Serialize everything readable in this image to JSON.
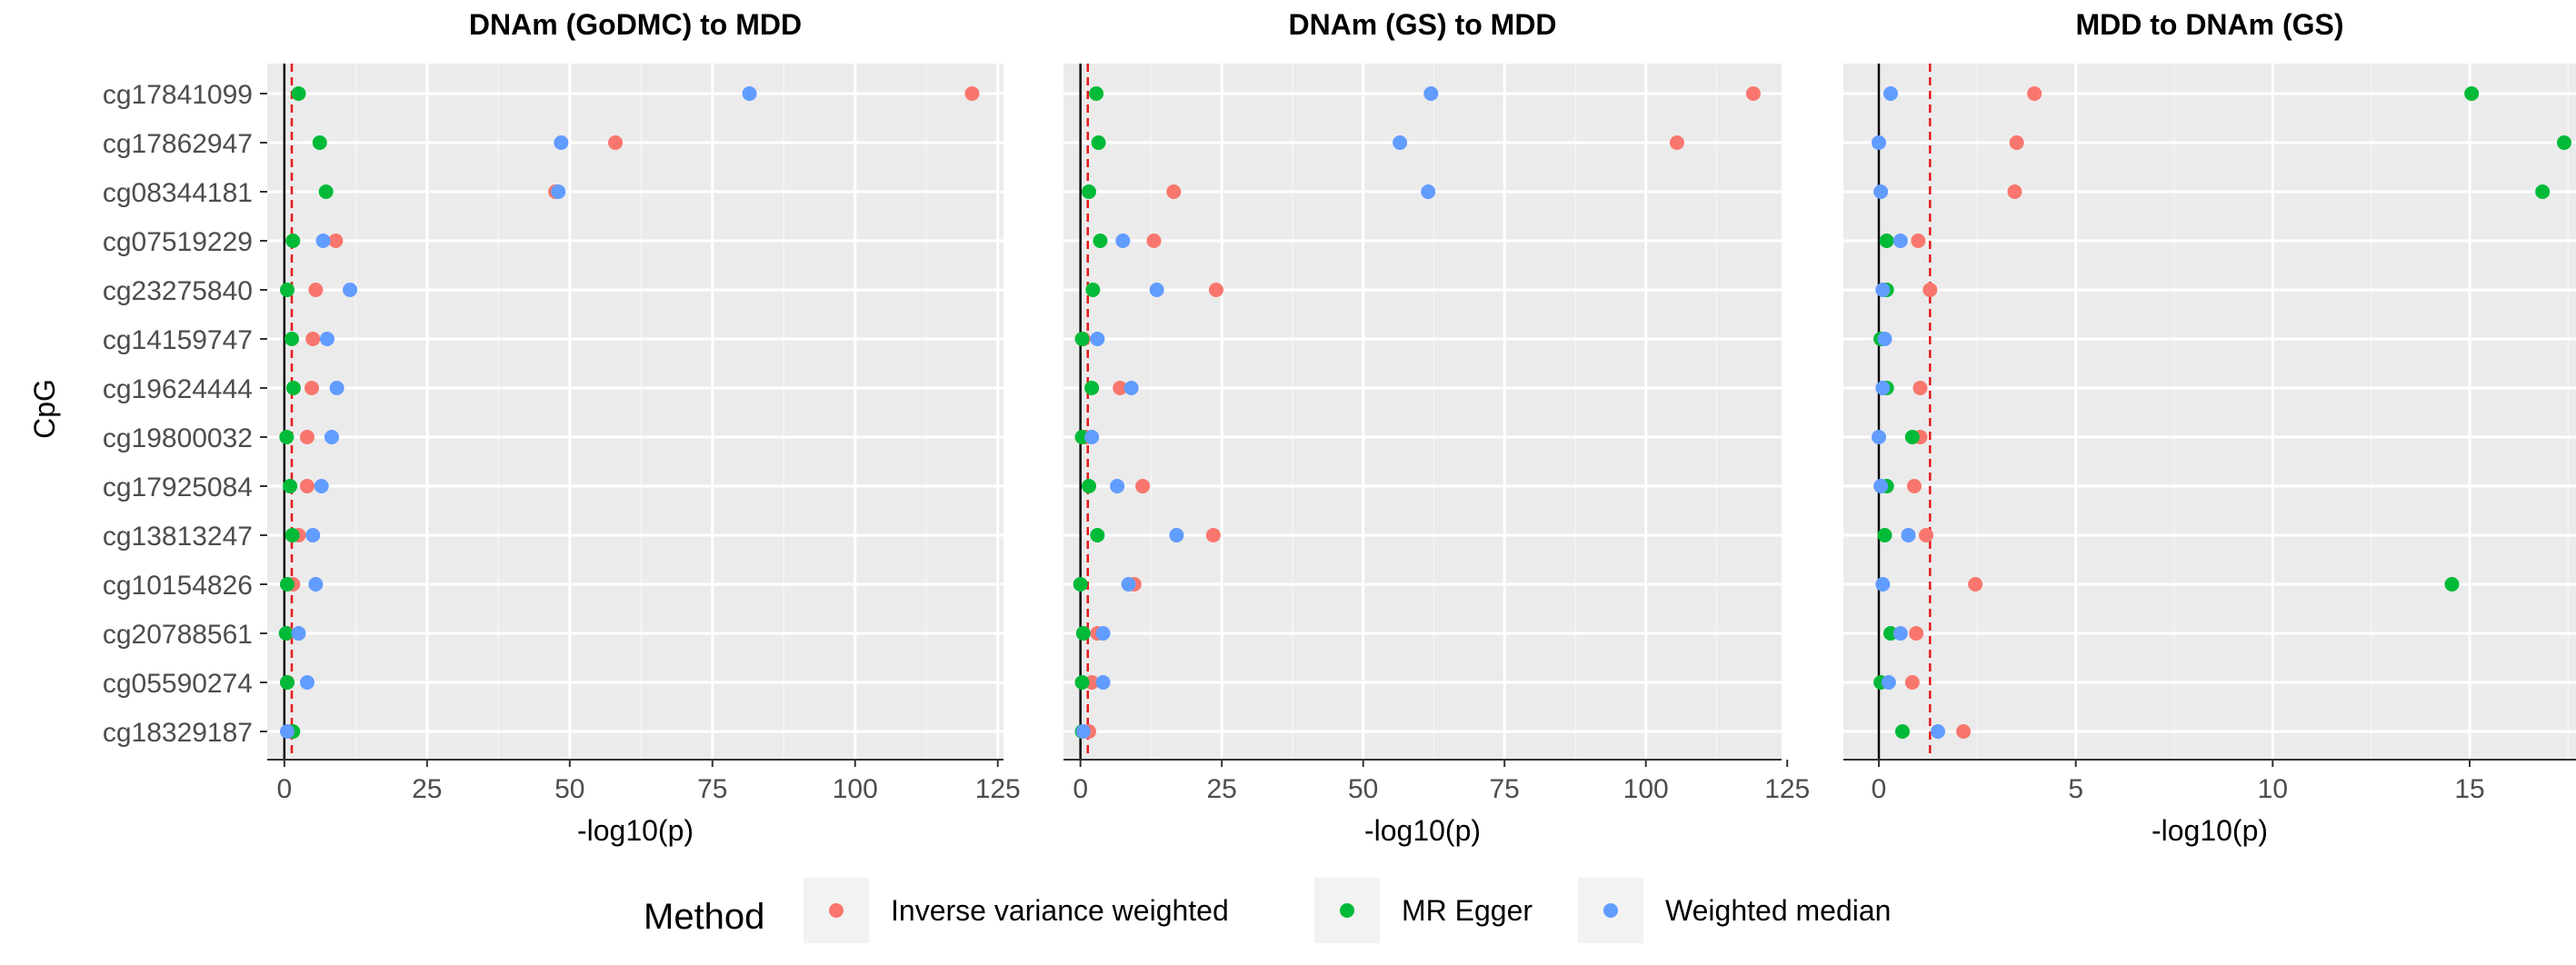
{
  "chart_data": {
    "type": "scatter",
    "ylabel": "CpG",
    "categories": [
      "cg17841099",
      "cg17862947",
      "cg08344181",
      "cg07519229",
      "cg23275840",
      "cg14159747",
      "cg19624444",
      "cg19800032",
      "cg17925084",
      "cg13813247",
      "cg10154826",
      "cg20788561",
      "cg05590274",
      "cg18329187"
    ],
    "legend": {
      "title": "Method",
      "position": "bottom",
      "entries": [
        {
          "name": "Inverse variance weighted",
          "color": "#F8766D"
        },
        {
          "name": "MR Egger",
          "color": "#00BA38"
        },
        {
          "name": "Weighted median",
          "color": "#619CFF"
        }
      ]
    },
    "panels": [
      {
        "title": "DNAm (GoDMC) to MDD",
        "xlabel": "-log10(p)",
        "xlim": [
          -3,
          126
        ],
        "xticks": [
          "0",
          "25",
          "50",
          "75",
          "100",
          "125"
        ],
        "xtick_values": [
          0,
          25,
          50,
          75,
          100,
          125
        ],
        "threshold": 1.3,
        "series": [
          {
            "name": "Inverse variance weighted",
            "values": [
              120.5,
              58,
              47.5,
              9,
              5.5,
              5,
              4.8,
              4,
              4,
              2.5,
              1.5,
              0.5,
              0.5,
              1
            ]
          },
          {
            "name": "MR Egger",
            "values": [
              2.5,
              6.2,
              7.3,
              1.5,
              0.5,
              1.3,
              1.6,
              0.4,
              1,
              1.4,
              0.5,
              0.3,
              0.5,
              1.5
            ]
          },
          {
            "name": "Weighted median",
            "values": [
              81.5,
              48.5,
              48,
              6.8,
              11.5,
              7.5,
              9.2,
              8.3,
              6.5,
              5,
              5.5,
              2.5,
              4,
              0.5
            ]
          }
        ]
      },
      {
        "title": "DNAm (GS) to MDD",
        "xlabel": "-log10(p)",
        "xlim": [
          -3,
          124
        ],
        "xticks": [
          "0",
          "25",
          "50",
          "75",
          "100",
          "125"
        ],
        "xtick_values": [
          0,
          25,
          50,
          75,
          100,
          125
        ],
        "threshold": 1.3,
        "series": [
          {
            "name": "Inverse variance weighted",
            "values": [
              119,
              105.5,
              16.5,
              13,
              24,
              0.5,
              7,
              1,
              11,
              23.5,
              9.5,
              3,
              2,
              1.5
            ]
          },
          {
            "name": "MR Egger",
            "values": [
              2.8,
              3.2,
              1.5,
              3.5,
              2.2,
              0.3,
              2,
              0.3,
              1.5,
              3,
              0,
              0.5,
              0.3,
              0.3
            ]
          },
          {
            "name": "Weighted median",
            "values": [
              62,
              56.5,
              61.5,
              7.5,
              13.5,
              3,
              9,
              2,
              6.5,
              17,
              8.5,
              4,
              4,
              0.5
            ]
          }
        ]
      },
      {
        "title": "MDD to DNAm (GS)",
        "xlabel": "-log10(p)",
        "xlim": [
          -0.9,
          17.7
        ],
        "xticks": [
          "0",
          "5",
          "10",
          "15"
        ],
        "xtick_values": [
          0,
          5,
          10,
          15
        ],
        "threshold": 1.3,
        "series": [
          {
            "name": "Inverse variance weighted",
            "values": [
              3.95,
              3.5,
              3.45,
              1,
              1.3,
              0.05,
              1.05,
              1.05,
              0.9,
              1.2,
              2.45,
              0.95,
              0.85,
              2.15
            ]
          },
          {
            "name": "MR Egger",
            "values": [
              15.05,
              17.4,
              16.85,
              0.2,
              0.2,
              0.05,
              0.2,
              0.85,
              0.2,
              0.15,
              14.55,
              0.3,
              0.05,
              0.6
            ]
          },
          {
            "name": "Weighted median",
            "values": [
              0.3,
              0,
              0.05,
              0.55,
              0.1,
              0.15,
              0.1,
              0,
              0.05,
              0.75,
              0.1,
              0.55,
              0.25,
              1.5
            ]
          }
        ]
      }
    ]
  }
}
